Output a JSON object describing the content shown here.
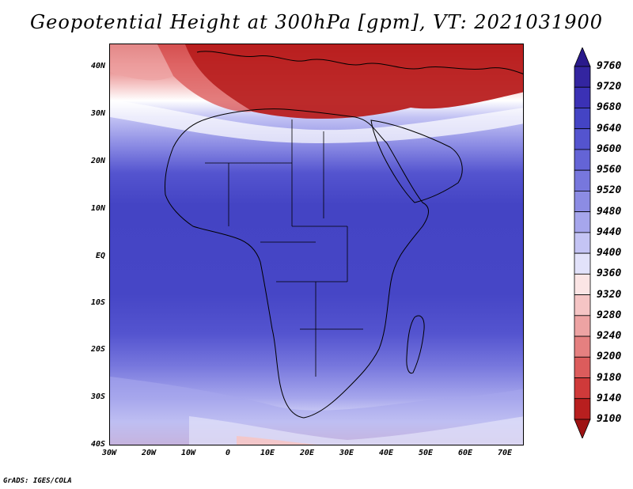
{
  "title": "Geopotential Height at 300hPa [gpm], VT: 2021031900",
  "footer": "GrADS: IGES/COLA",
  "map": {
    "region": "Africa",
    "projection": "latlon",
    "lon_range": [
      -30,
      75
    ],
    "lat_range": [
      -40,
      45
    ],
    "lat_ticks": [
      "40N",
      "30N",
      "20N",
      "10N",
      "EQ",
      "10S",
      "20S",
      "30S",
      "40S"
    ],
    "lon_ticks": [
      "30W",
      "20W",
      "10W",
      "0",
      "10E",
      "20E",
      "30E",
      "40E",
      "50E",
      "60E",
      "70E"
    ],
    "field": "geopotential height 300hPa",
    "units": "gpm"
  },
  "colorbar": {
    "labels": [
      "9760",
      "9720",
      "9680",
      "9640",
      "9600",
      "9560",
      "9520",
      "9480",
      "9440",
      "9400",
      "9360",
      "9320",
      "9280",
      "9240",
      "9200",
      "9180",
      "9140",
      "9100"
    ],
    "colors": [
      "#2a1a8c",
      "#3325a0",
      "#3b31b5",
      "#4444c4",
      "#5454cf",
      "#6464d6",
      "#7777dd",
      "#8c8ce4",
      "#a6a6ec",
      "#c4c4f4",
      "#e2e2fa",
      "#fbe5e5",
      "#f5c5c5",
      "#eda3a3",
      "#e58080",
      "#dc5c5c",
      "#cf3a3a",
      "#b81f1f",
      "#9e1313"
    ]
  }
}
